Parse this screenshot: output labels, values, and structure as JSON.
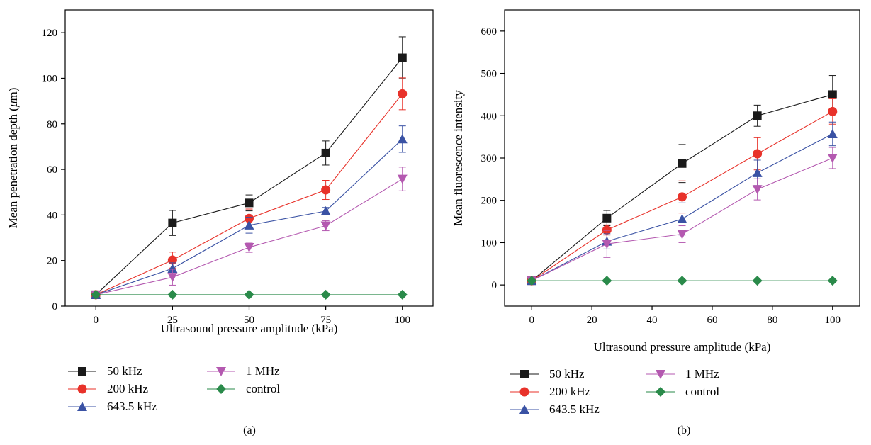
{
  "chart_data": [
    {
      "type": "line",
      "panel_label": "(a)",
      "xlabel": "Ultrasound pressure amplitude (kPa)",
      "ylabel_main": "Mean penetration depth (",
      "ylabel_mu": "μ",
      "ylabel_tail": "m)",
      "x": [
        0,
        25,
        50,
        75,
        100
      ],
      "xticks": [
        "0",
        "25",
        "50",
        "75",
        "100"
      ],
      "xlim": [
        -10,
        110
      ],
      "yticks": [
        "0",
        "20",
        "40",
        "60",
        "80",
        "100",
        "120"
      ],
      "ylim": [
        0,
        130
      ],
      "series": [
        {
          "name": "50 kHz",
          "color": "#1a1a1a",
          "marker": "square",
          "values": [
            5,
            36.5,
            45.3,
            67.2,
            109
          ],
          "err": [
            0,
            5.5,
            3.5,
            5.3,
            9.2
          ]
        },
        {
          "name": "200 kHz",
          "color": "#e8322a",
          "marker": "circle",
          "values": [
            5,
            20.2,
            38.5,
            51,
            93.2
          ],
          "err": [
            0,
            3.5,
            4.1,
            4.2,
            7
          ]
        },
        {
          "name": "643.5 kHz",
          "color": "#3a52a4",
          "marker": "triangle-up",
          "values": [
            5,
            16.5,
            35.5,
            41.7,
            73.3
          ],
          "err": [
            0,
            2.5,
            3.5,
            1.6,
            5.8
          ]
        },
        {
          "name": "1 MHz",
          "color": "#b459b0",
          "marker": "triangle-down",
          "values": [
            5,
            12.7,
            25.8,
            35.3,
            55.8
          ],
          "err": [
            0,
            3.5,
            2.2,
            2.2,
            5.2
          ]
        },
        {
          "name": "control",
          "color": "#2a8a4a",
          "marker": "diamond",
          "values": [
            5,
            5,
            5,
            5,
            5
          ],
          "err": [
            0,
            0,
            0,
            0,
            0
          ]
        }
      ]
    },
    {
      "type": "line",
      "panel_label": "(b)",
      "xlabel": "Ultrasound pressure amplitude (kPa)",
      "ylabel_main": "Mean fluorescence intensity",
      "ylabel_mu": "",
      "ylabel_tail": "",
      "x": [
        0,
        25,
        50,
        75,
        100
      ],
      "xticks": [
        "0",
        "20",
        "40",
        "60",
        "80",
        "100"
      ],
      "xlim": [
        -9,
        109
      ],
      "yticks": [
        "0",
        "100",
        "200",
        "300",
        "400",
        "500",
        "600"
      ],
      "ylim": [
        -50,
        650
      ],
      "series": [
        {
          "name": "50 kHz",
          "color": "#1a1a1a",
          "marker": "square",
          "values": [
            10,
            158,
            287,
            400,
            450
          ],
          "err": [
            5,
            18,
            45,
            25,
            45
          ]
        },
        {
          "name": "200 kHz",
          "color": "#e8322a",
          "marker": "circle",
          "values": [
            10,
            130,
            208,
            310,
            410
          ],
          "err": [
            5,
            12,
            38,
            38,
            30
          ]
        },
        {
          "name": "643.5 kHz",
          "color": "#3a52a4",
          "marker": "triangle-up",
          "values": [
            10,
            103,
            156,
            265,
            357
          ],
          "err": [
            5,
            18,
            38,
            30,
            28
          ]
        },
        {
          "name": "1 MHz",
          "color": "#b459b0",
          "marker": "triangle-down",
          "values": [
            10,
            97,
            120,
            226,
            300
          ],
          "err": [
            5,
            32,
            20,
            25,
            25
          ]
        },
        {
          "name": "control",
          "color": "#2a8a4a",
          "marker": "diamond",
          "values": [
            10,
            10,
            10,
            10,
            10
          ],
          "err": [
            0,
            0,
            0,
            0,
            0
          ]
        }
      ]
    }
  ]
}
